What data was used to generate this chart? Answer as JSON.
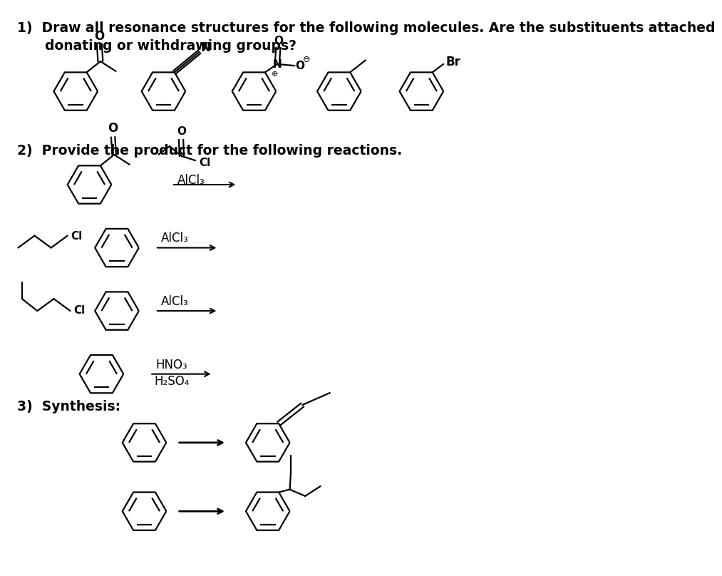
{
  "bg_color": "#ffffff",
  "text_color": "#000000",
  "title1": "1)  Draw all resonance structures for the following molecules. Are the substituents attached",
  "title1b": "      donating or withdrawing groups?",
  "title2": "2)  Provide the product for the following reactions.",
  "title3": "3)  Synthesis:",
  "font_size_main": 13.5,
  "line_width": 1.6
}
